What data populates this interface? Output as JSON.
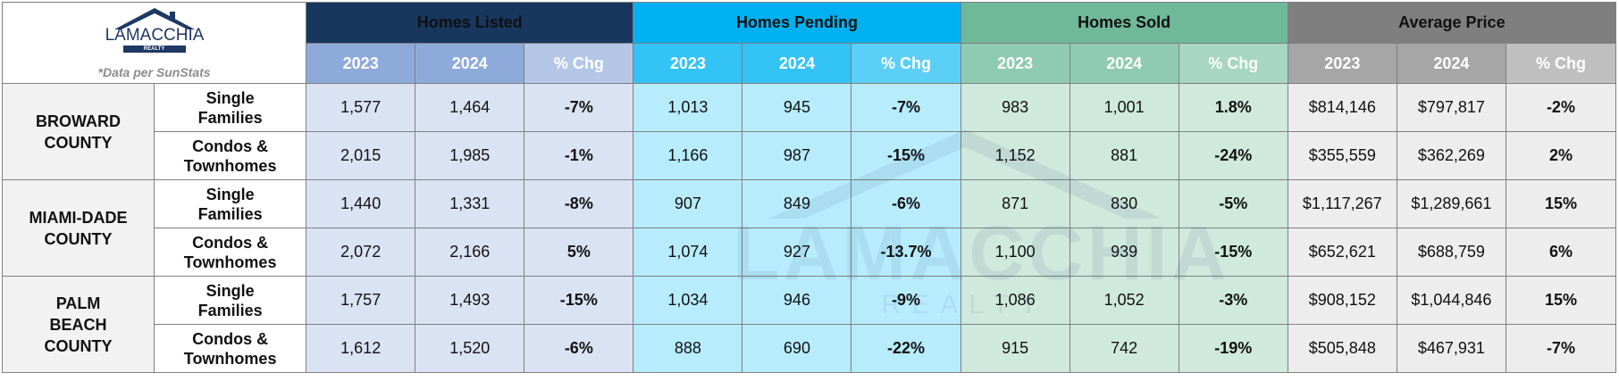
{
  "logo": {
    "name": "LAMACCHIA",
    "sub": "REALTY",
    "note": "*Data per SunStats"
  },
  "headers": {
    "groups": [
      "Homes Listed",
      "Homes Pending",
      "Homes Sold",
      "Average Price"
    ],
    "years": [
      "2023",
      "2024",
      "% Chg"
    ]
  },
  "counties": [
    {
      "name": "BROWARD COUNTY",
      "rows": [
        {
          "type": "Single Families",
          "listed": [
            "1,577",
            "1,464",
            "-7%"
          ],
          "pending": [
            "1,013",
            "945",
            "-7%"
          ],
          "sold": [
            "983",
            "1,001",
            "1.8%"
          ],
          "avg": [
            "$814,146",
            "$797,817",
            "-2%"
          ]
        },
        {
          "type": "Condos & Townhomes",
          "listed": [
            "2,015",
            "1,985",
            "-1%"
          ],
          "pending": [
            "1,166",
            "987",
            "-15%"
          ],
          "sold": [
            "1,152",
            "881",
            "-24%"
          ],
          "avg": [
            "$355,559",
            "$362,269",
            "2%"
          ]
        }
      ]
    },
    {
      "name": "MIAMI-DADE COUNTY",
      "rows": [
        {
          "type": "Single Families",
          "listed": [
            "1,440",
            "1,331",
            "-8%"
          ],
          "pending": [
            "907",
            "849",
            "-6%"
          ],
          "sold": [
            "871",
            "830",
            "-5%"
          ],
          "avg": [
            "$1,117,267",
            "$1,289,661",
            "15%"
          ]
        },
        {
          "type": "Condos & Townhomes",
          "listed": [
            "2,072",
            "2,166",
            "5%"
          ],
          "pending": [
            "1,074",
            "927",
            "-13.7%"
          ],
          "sold": [
            "1,100",
            "939",
            "-15%"
          ],
          "avg": [
            "$652,621",
            "$688,759",
            "6%"
          ]
        }
      ]
    },
    {
      "name": "PALM BEACH COUNTY",
      "rows": [
        {
          "type": "Single Families",
          "listed": [
            "1,757",
            "1,493",
            "-15%"
          ],
          "pending": [
            "1,034",
            "946",
            "-9%"
          ],
          "sold": [
            "1,086",
            "1,052",
            "-3%"
          ],
          "avg": [
            "$908,152",
            "$1,044,846",
            "15%"
          ]
        },
        {
          "type": "Condos & Townhomes",
          "listed": [
            "1,612",
            "1,520",
            "-6%"
          ],
          "pending": [
            "888",
            "690",
            "-22%"
          ],
          "sold": [
            "915",
            "742",
            "-19%"
          ],
          "avg": [
            "$505,848",
            "$467,931",
            "-7%"
          ]
        }
      ]
    }
  ]
}
